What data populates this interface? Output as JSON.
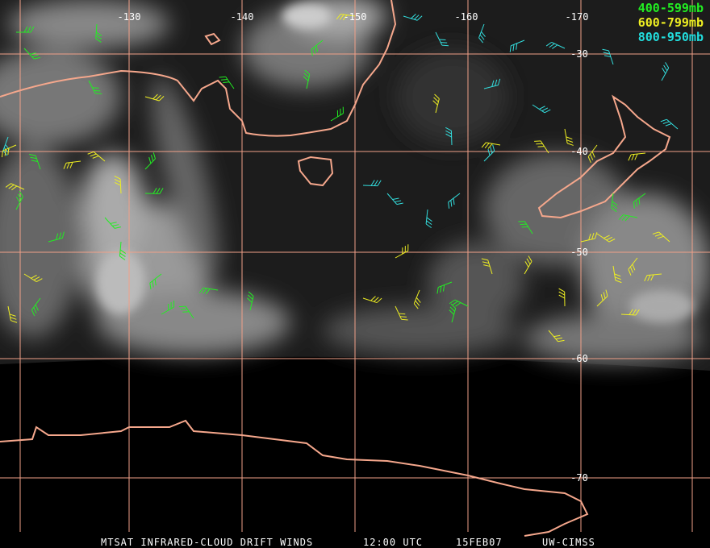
{
  "map": {
    "lon_labels": [
      "-130",
      "-140",
      "-150",
      "-160",
      "-170"
    ],
    "lat_labels": [
      "-30",
      "-40",
      "-50",
      "-60",
      "-70"
    ],
    "legend": [
      "400-599mb",
      "600-799mb",
      "800-950mb"
    ],
    "footer": [
      "MTSAT INFRARED-CLOUD DRIFT WINDS",
      "12:00 UTC",
      "15FEB07",
      "UW-CIMSS"
    ]
  }
}
